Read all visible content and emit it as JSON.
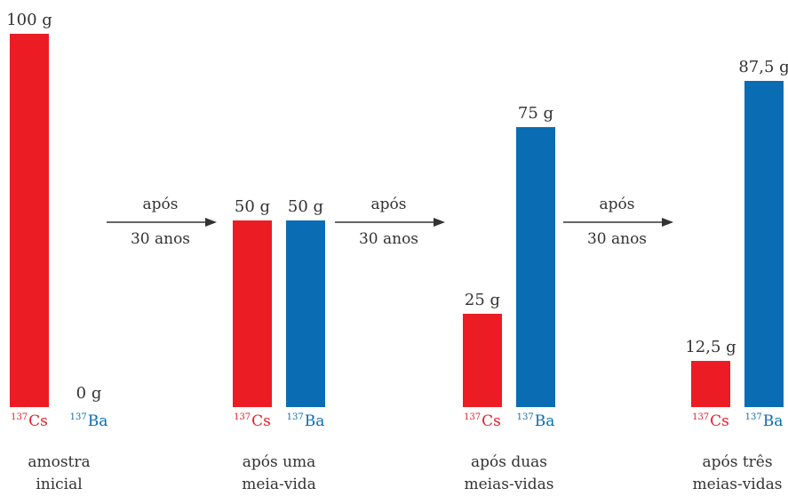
{
  "colors": {
    "cs": "#ec1c24",
    "ba": "#0a6db4",
    "text": "#333333",
    "arrow": "#333333"
  },
  "isotopes": {
    "cs_mass": "137",
    "cs_symbol": "Cs",
    "ba_mass": "137",
    "ba_symbol": "Ba"
  },
  "arrows": [
    {
      "line1": "após",
      "line2": "30 anos"
    },
    {
      "line1": "após",
      "line2": "30 anos"
    },
    {
      "line1": "após",
      "line2": "30 anos"
    }
  ],
  "chart_data": {
    "type": "bar",
    "unit": "g",
    "series": [
      {
        "name": "Cs",
        "values": [
          100,
          50,
          25,
          12.5
        ]
      },
      {
        "name": "Ba",
        "values": [
          0,
          50,
          75,
          87.5
        ]
      }
    ],
    "groups": [
      {
        "line1": "amostra",
        "line2": "inicial",
        "cs_label": "100 g",
        "ba_label": "0 g"
      },
      {
        "line1": "após uma",
        "line2": "meia-vida",
        "cs_label": "50 g",
        "ba_label": "50 g"
      },
      {
        "line1": "após duas",
        "line2": "meias-vidas",
        "cs_label": "25 g",
        "ba_label": "75 g"
      },
      {
        "line1": "após três",
        "line2": "meias-vidas",
        "cs_label": "12,5 g",
        "ba_label": "87,5 g"
      }
    ]
  }
}
